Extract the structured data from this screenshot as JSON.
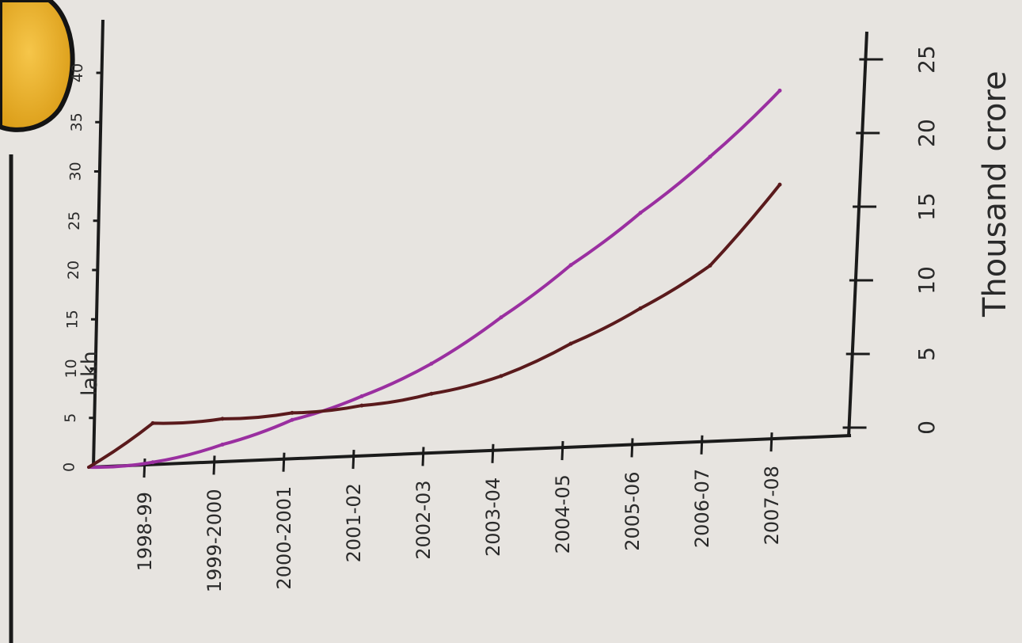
{
  "chart_data": {
    "type": "line",
    "left_axis_title": "lakh",
    "right_axis_title": "Thousand crore",
    "left_ticks": [
      "0",
      "5",
      "10",
      "15",
      "20",
      "25",
      "30",
      "35",
      "40"
    ],
    "right_ticks": [
      "0",
      "5",
      "10",
      "15",
      "20",
      "25"
    ],
    "categories": [
      "1998-99",
      "1999-2000",
      "2000-2001",
      "2001-02",
      "2002-03",
      "2003-04",
      "2004-05",
      "2005-06",
      "2006-07",
      "2007-08"
    ],
    "series": [
      {
        "color": "#9a2fa0",
        "axis": "left",
        "values": [
          0.5,
          2.3,
          4.8,
          7.2,
          10.5,
          15.2,
          20.5,
          25.8,
          31.5,
          38.2
        ]
      },
      {
        "color": "#5a1a1c",
        "axis": "right",
        "values": [
          0.3,
          0.6,
          1.0,
          1.5,
          2.3,
          3.5,
          5.7,
          8.1,
          11.0,
          16.5
        ]
      }
    ]
  }
}
